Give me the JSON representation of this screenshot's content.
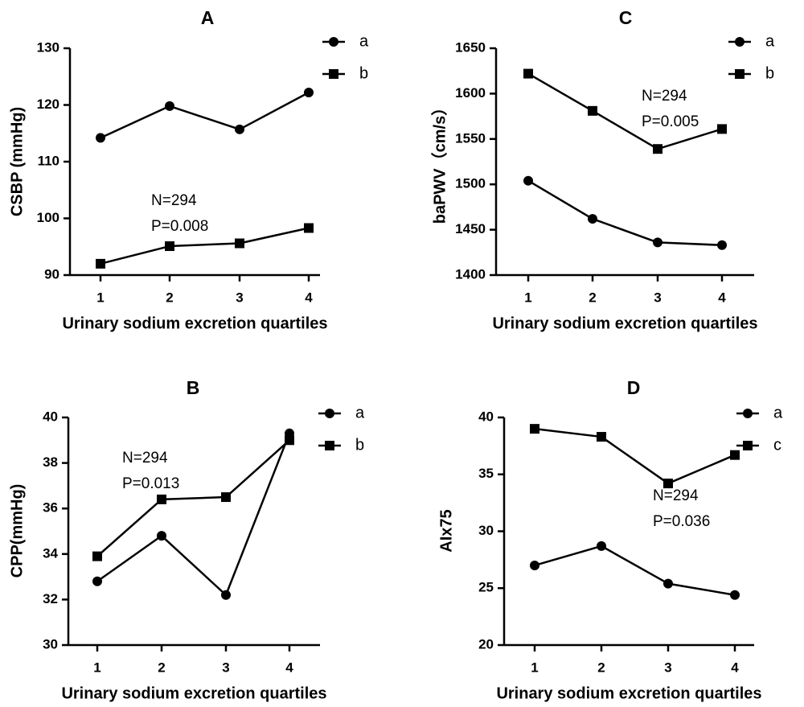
{
  "chart_data": [
    {
      "type": "line",
      "title": "A",
      "xlabel": "Urinary sodium excretion quartiles",
      "ylabel": "CSBP (mmHg)",
      "categories": [
        "1",
        "2",
        "3",
        "4"
      ],
      "ylim": [
        90,
        130
      ],
      "yticks": [
        "90",
        "100",
        "110",
        "120",
        "130"
      ],
      "series": [
        {
          "name": "a",
          "marker": "circle",
          "values": [
            114.2,
            119.8,
            115.7,
            122.2
          ]
        },
        {
          "name": "b",
          "marker": "square",
          "values": [
            92.0,
            95.1,
            95.6,
            98.3
          ]
        }
      ],
      "annotations": [
        "N=294",
        "P=0.008"
      ],
      "legend_position": "top-right"
    },
    {
      "type": "line",
      "title": "C",
      "xlabel": "Urinary sodium excretion quartiles",
      "ylabel": "baPWV（cm/s）",
      "categories": [
        "1",
        "2",
        "3",
        "4"
      ],
      "ylim": [
        1400,
        1650
      ],
      "yticks": [
        "1400",
        "1450",
        "1500",
        "1550",
        "1600",
        "1650"
      ],
      "series": [
        {
          "name": "a",
          "marker": "circle",
          "values": [
            1504,
            1462,
            1436,
            1433
          ]
        },
        {
          "name": "b",
          "marker": "square",
          "values": [
            1622,
            1581,
            1539,
            1561
          ]
        }
      ],
      "annotations": [
        "N=294",
        "P=0.005"
      ],
      "legend_position": "top-right"
    },
    {
      "type": "line",
      "title": "B",
      "xlabel": "Urinary sodium excretion quartiles",
      "ylabel": "CPP(mmHg)",
      "categories": [
        "1",
        "2",
        "3",
        "4"
      ],
      "ylim": [
        30,
        40
      ],
      "yticks": [
        "30",
        "32",
        "34",
        "36",
        "38",
        "40"
      ],
      "series": [
        {
          "name": "a",
          "marker": "circle",
          "values": [
            32.8,
            34.8,
            32.2,
            39.3
          ]
        },
        {
          "name": "b",
          "marker": "square",
          "values": [
            33.9,
            36.4,
            36.5,
            39.0
          ]
        }
      ],
      "annotations": [
        "N=294",
        "P=0.013"
      ],
      "legend_position": "top-right"
    },
    {
      "type": "line",
      "title": "D",
      "xlabel": "Urinary sodium excretion quartiles",
      "ylabel": "AIx75",
      "categories": [
        "1",
        "2",
        "3",
        "4"
      ],
      "ylim": [
        20,
        40
      ],
      "yticks": [
        "20",
        "25",
        "30",
        "35",
        "40"
      ],
      "series": [
        {
          "name": "a",
          "marker": "circle",
          "values": [
            27.0,
            28.7,
            25.4,
            24.4
          ]
        },
        {
          "name": "c",
          "marker": "square",
          "values": [
            39.0,
            38.3,
            34.2,
            36.7
          ]
        }
      ],
      "annotations": [
        "N=294",
        "P=0.036"
      ],
      "legend_position": "top-right"
    }
  ]
}
